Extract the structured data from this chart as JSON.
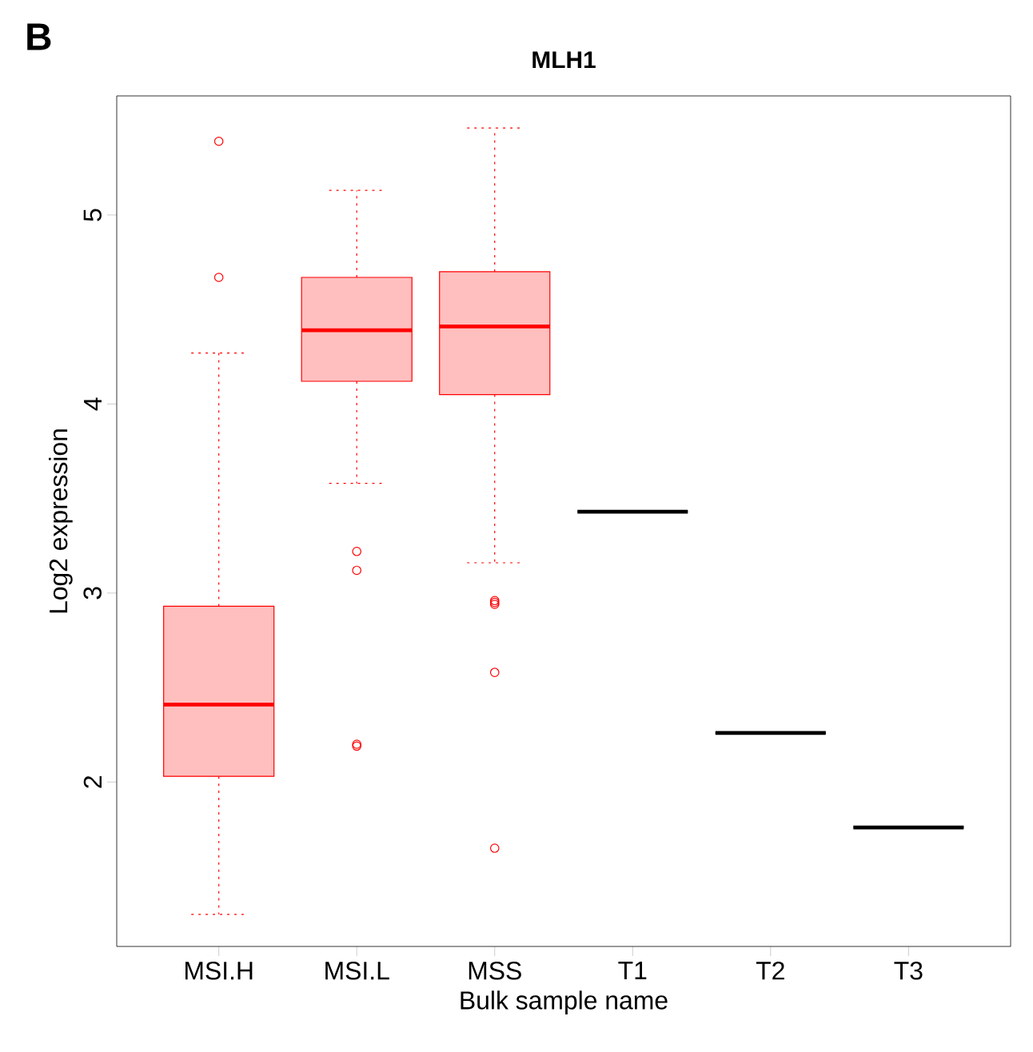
{
  "chart_data": {
    "type": "box",
    "title": "MLH1",
    "xlabel": "Bulk sample name",
    "ylabel": "Log2 expression",
    "annotations": [
      "B"
    ],
    "categories": [
      "MSI.H",
      "MSI.L",
      "MSS",
      "T1",
      "T2",
      "T3"
    ],
    "colors": [
      "#ff0000",
      "#ff0000",
      "#ff0000",
      "#000000",
      "#000000",
      "#000000"
    ],
    "marker": "circle",
    "ylim": [
      1.13,
      5.63
    ],
    "yticks": [
      2,
      3,
      4,
      5
    ],
    "boxes": [
      {
        "low": 1.3,
        "q1": 2.03,
        "median": 2.41,
        "q3": 2.93,
        "high": 4.27,
        "outliers": [
          5.39,
          4.67
        ]
      },
      {
        "low": 3.58,
        "q1": 4.12,
        "median": 4.39,
        "q3": 4.67,
        "high": 5.13,
        "outliers": [
          3.22,
          3.12,
          2.2,
          2.19
        ]
      },
      {
        "low": 3.16,
        "q1": 4.05,
        "median": 4.41,
        "q3": 4.7,
        "high": 5.46,
        "outliers": [
          2.96,
          2.95,
          2.94,
          2.58,
          1.65
        ]
      },
      {
        "low": 3.43,
        "q1": 3.43,
        "median": 3.43,
        "q3": 3.43,
        "high": 3.43
      },
      {
        "low": 2.26,
        "q1": 2.26,
        "median": 2.26,
        "q3": 2.26,
        "high": 2.26
      },
      {
        "low": 1.76,
        "q1": 1.76,
        "median": 1.76,
        "q3": 1.76,
        "high": 1.76
      }
    ]
  }
}
